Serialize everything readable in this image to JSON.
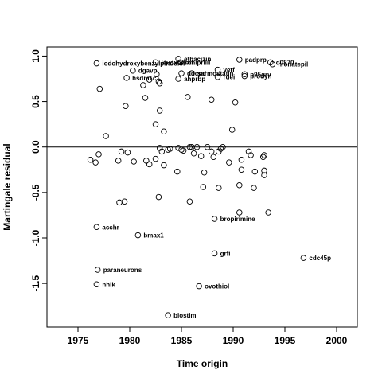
{
  "chart_data": {
    "type": "scatter",
    "xlabel": "Time origin",
    "ylabel": "Martingale residual",
    "xlim": [
      1972,
      2002
    ],
    "ylim": [
      -1.98,
      1.1
    ],
    "x_ticks": [
      1975,
      1980,
      1985,
      1990,
      1995,
      2000
    ],
    "y_ticks": [
      -1.5,
      -1.0,
      -0.5,
      0.0,
      0.5,
      1.0
    ],
    "x_tick_labels": [
      "1975",
      "1980",
      "1985",
      "1990",
      "1995",
      "2000"
    ],
    "y_tick_labels": [
      "-1.5",
      "-1.0",
      "-0.5",
      "0.0",
      "0.5",
      "1.0"
    ],
    "reference_line_y": 0,
    "grid": false,
    "points": [
      {
        "x": 1976.8,
        "y": 0.92,
        "label": "iodohydroxybenzylpindolol"
      },
      {
        "x": 1982.5,
        "y": 0.93,
        "label": "levoxadrol"
      },
      {
        "x": 1984.7,
        "y": 0.97,
        "label": "ethacizin"
      },
      {
        "x": 1984.9,
        "y": 0.93,
        "label": "amiprilil"
      },
      {
        "x": 1980.3,
        "y": 0.84,
        "label": "dgavp"
      },
      {
        "x": 1979.7,
        "y": 0.76,
        "label": "hsdm1c1"
      },
      {
        "x": 1985.0,
        "y": 0.81,
        "label": "ddcpd"
      },
      {
        "x": 1986.0,
        "y": 0.81,
        "label": "sarmostatin"
      },
      {
        "x": 1984.7,
        "y": 0.75,
        "label": "ahprbp"
      },
      {
        "x": 1988.5,
        "y": 0.85,
        "label": "vetf"
      },
      {
        "x": 1988.5,
        "y": 0.77,
        "label": "rdei"
      },
      {
        "x": 1990.6,
        "y": 0.96,
        "label": "padprp"
      },
      {
        "x": 1991.1,
        "y": 0.8,
        "label": "p95grv"
      },
      {
        "x": 1991.1,
        "y": 0.78,
        "label": "prodyn"
      },
      {
        "x": 1993.6,
        "y": 0.93,
        "label": "d0870"
      },
      {
        "x": 1993.8,
        "y": 0.91,
        "label": "monatepil"
      },
      {
        "x": 1977.1,
        "y": 0.64,
        "label": ""
      },
      {
        "x": 1979.6,
        "y": 0.45,
        "label": ""
      },
      {
        "x": 1981.3,
        "y": 0.68,
        "label": ""
      },
      {
        "x": 1981.5,
        "y": 0.54,
        "label": ""
      },
      {
        "x": 1981.9,
        "y": 0.74,
        "label": ""
      },
      {
        "x": 1982.6,
        "y": 0.8,
        "label": ""
      },
      {
        "x": 1982.8,
        "y": 0.72,
        "label": ""
      },
      {
        "x": 1982.9,
        "y": 0.7,
        "label": ""
      },
      {
        "x": 1982.9,
        "y": 0.4,
        "label": ""
      },
      {
        "x": 1983.3,
        "y": 0.17,
        "label": ""
      },
      {
        "x": 1982.5,
        "y": 0.25,
        "label": ""
      },
      {
        "x": 1985.6,
        "y": 0.55,
        "label": ""
      },
      {
        "x": 1987.9,
        "y": 0.52,
        "label": ""
      },
      {
        "x": 1990.2,
        "y": 0.49,
        "label": ""
      },
      {
        "x": 1989.9,
        "y": 0.19,
        "label": ""
      },
      {
        "x": 1977.7,
        "y": 0.12,
        "label": ""
      },
      {
        "x": 1976.2,
        "y": -0.14,
        "label": ""
      },
      {
        "x": 1976.7,
        "y": -0.17,
        "label": ""
      },
      {
        "x": 1977.0,
        "y": -0.08,
        "label": ""
      },
      {
        "x": 1978.9,
        "y": -0.15,
        "label": ""
      },
      {
        "x": 1979.2,
        "y": -0.05,
        "label": ""
      },
      {
        "x": 1979.8,
        "y": -0.06,
        "label": ""
      },
      {
        "x": 1980.4,
        "y": -0.16,
        "label": ""
      },
      {
        "x": 1981.6,
        "y": -0.15,
        "label": ""
      },
      {
        "x": 1981.9,
        "y": -0.19,
        "label": ""
      },
      {
        "x": 1982.5,
        "y": -0.13,
        "label": ""
      },
      {
        "x": 1982.9,
        "y": -0.01,
        "label": ""
      },
      {
        "x": 1983.1,
        "y": -0.05,
        "label": ""
      },
      {
        "x": 1983.3,
        "y": -0.2,
        "label": ""
      },
      {
        "x": 1983.7,
        "y": -0.03,
        "label": ""
      },
      {
        "x": 1983.9,
        "y": -0.02,
        "label": ""
      },
      {
        "x": 1984.7,
        "y": -0.01,
        "label": ""
      },
      {
        "x": 1985.0,
        "y": -0.03,
        "label": ""
      },
      {
        "x": 1985.2,
        "y": -0.04,
        "label": ""
      },
      {
        "x": 1985.8,
        "y": 0.0,
        "label": ""
      },
      {
        "x": 1986.0,
        "y": 0.0,
        "label": ""
      },
      {
        "x": 1986.2,
        "y": -0.07,
        "label": ""
      },
      {
        "x": 1986.5,
        "y": 0.0,
        "label": ""
      },
      {
        "x": 1986.9,
        "y": -0.1,
        "label": ""
      },
      {
        "x": 1987.5,
        "y": 0.0,
        "label": ""
      },
      {
        "x": 1987.9,
        "y": -0.05,
        "label": ""
      },
      {
        "x": 1988.1,
        "y": -0.11,
        "label": ""
      },
      {
        "x": 1988.6,
        "y": -0.05,
        "label": ""
      },
      {
        "x": 1988.8,
        "y": -0.02,
        "label": ""
      },
      {
        "x": 1989.0,
        "y": 0.0,
        "label": ""
      },
      {
        "x": 1989.6,
        "y": -0.17,
        "label": ""
      },
      {
        "x": 1991.5,
        "y": -0.05,
        "label": ""
      },
      {
        "x": 1991.7,
        "y": -0.09,
        "label": ""
      },
      {
        "x": 1992.1,
        "y": -0.27,
        "label": ""
      },
      {
        "x": 1992.9,
        "y": -0.11,
        "label": ""
      },
      {
        "x": 1993.0,
        "y": -0.09,
        "label": ""
      },
      {
        "x": 1993.0,
        "y": -0.26,
        "label": ""
      },
      {
        "x": 1993.0,
        "y": -0.31,
        "label": ""
      },
      {
        "x": 1984.6,
        "y": -0.27,
        "label": ""
      },
      {
        "x": 1987.2,
        "y": -0.28,
        "label": ""
      },
      {
        "x": 1990.8,
        "y": -0.14,
        "label": ""
      },
      {
        "x": 1990.8,
        "y": -0.25,
        "label": ""
      },
      {
        "x": 1992.0,
        "y": -0.45,
        "label": ""
      },
      {
        "x": 1990.6,
        "y": -0.42,
        "label": ""
      },
      {
        "x": 1987.1,
        "y": -0.44,
        "label": ""
      },
      {
        "x": 1988.6,
        "y": -0.45,
        "label": ""
      },
      {
        "x": 1982.8,
        "y": -0.55,
        "label": ""
      },
      {
        "x": 1985.8,
        "y": -0.6,
        "label": ""
      },
      {
        "x": 1979.0,
        "y": -0.61,
        "label": ""
      },
      {
        "x": 1979.5,
        "y": -0.6,
        "label": ""
      },
      {
        "x": 1990.6,
        "y": -0.72,
        "label": ""
      },
      {
        "x": 1993.4,
        "y": -0.72,
        "label": ""
      },
      {
        "x": 1988.2,
        "y": -0.79,
        "label": "bropirimine"
      },
      {
        "x": 1976.8,
        "y": -0.88,
        "label": "acchr"
      },
      {
        "x": 1980.8,
        "y": -0.97,
        "label": "bmax1"
      },
      {
        "x": 1988.2,
        "y": -1.17,
        "label": "grfi"
      },
      {
        "x": 1996.8,
        "y": -1.22,
        "label": "cdc45p"
      },
      {
        "x": 1976.9,
        "y": -1.35,
        "label": "paraneurons"
      },
      {
        "x": 1976.8,
        "y": -1.51,
        "label": "nhik"
      },
      {
        "x": 1986.7,
        "y": -1.53,
        "label": "ovothiol"
      },
      {
        "x": 1983.7,
        "y": -1.85,
        "label": "biostim"
      }
    ]
  }
}
